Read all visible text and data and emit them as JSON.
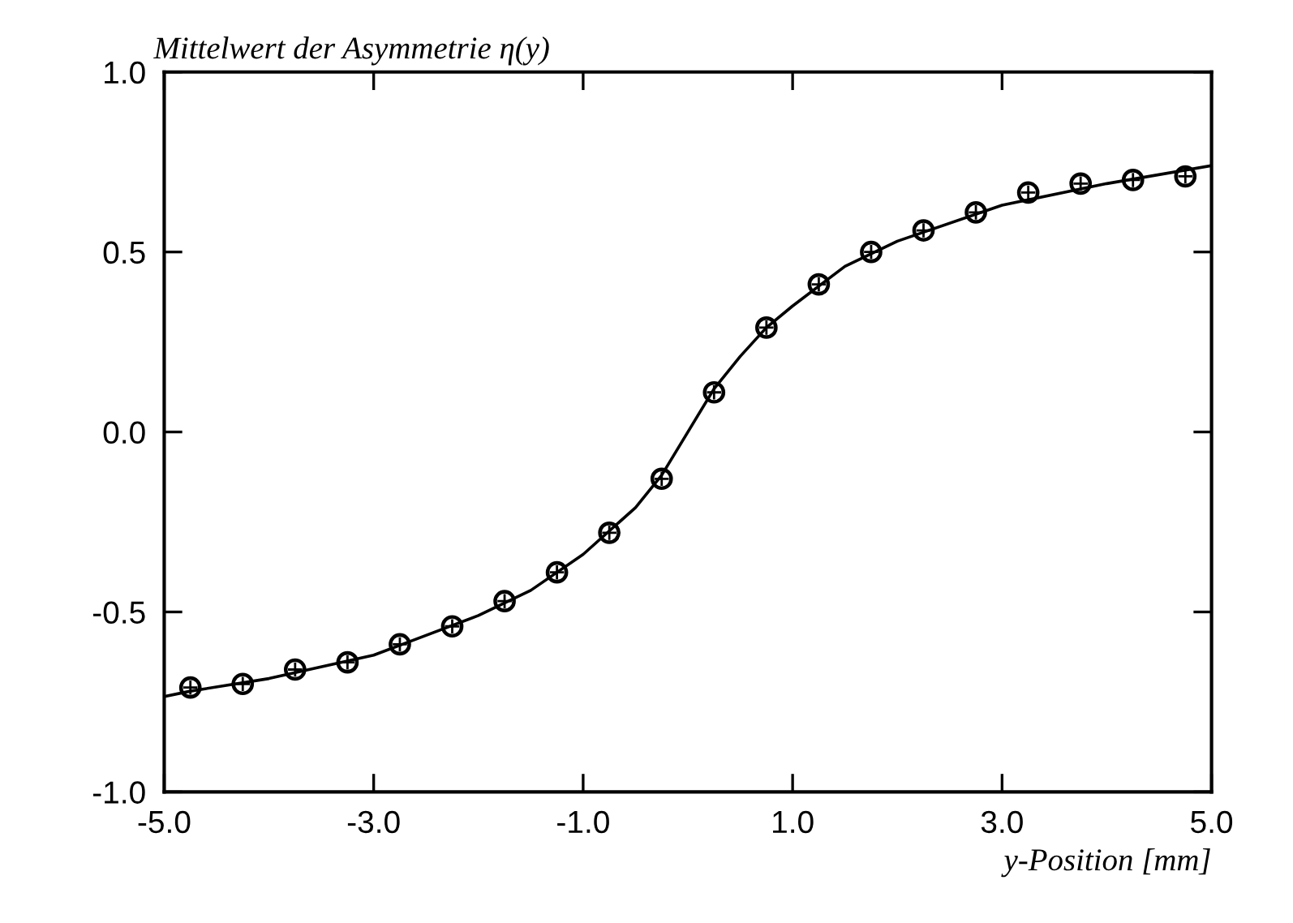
{
  "chart_data": {
    "type": "scatter",
    "title": "Mittelwert der Asymmetrie η(y)",
    "xlabel": "y-Position [mm]",
    "xlim": [
      -5,
      5
    ],
    "ylim": [
      -1,
      1
    ],
    "xticks": [
      {
        "value": -5,
        "label": "-5.0"
      },
      {
        "value": -3,
        "label": "-3.0"
      },
      {
        "value": -1,
        "label": "-1.0"
      },
      {
        "value": 1,
        "label": "1.0"
      },
      {
        "value": 3,
        "label": "3.0"
      },
      {
        "value": 5,
        "label": "5.0"
      }
    ],
    "yticks": [
      {
        "value": -1,
        "label": "-1.0"
      },
      {
        "value": -0.5,
        "label": "-0.5"
      },
      {
        "value": 0,
        "label": "0.0"
      },
      {
        "value": 0.5,
        "label": "0.5"
      },
      {
        "value": 1,
        "label": "1.0"
      }
    ],
    "grid": false,
    "legend": false,
    "marker": "circle",
    "series": [
      {
        "color": "#000000",
        "x": [
          -4.75,
          -4.25,
          -3.75,
          -3.25,
          -2.75,
          -2.25,
          -1.75,
          -1.25,
          -0.75,
          -0.25,
          0.25,
          0.75,
          1.25,
          1.75,
          2.25,
          2.75,
          3.25,
          3.75,
          4.25,
          4.75
        ],
        "values": [
          -0.71,
          -0.7,
          -0.66,
          -0.64,
          -0.59,
          -0.54,
          -0.47,
          -0.39,
          -0.28,
          -0.13,
          0.11,
          0.29,
          0.41,
          0.5,
          0.56,
          0.61,
          0.665,
          0.69,
          0.7,
          0.71
        ]
      },
      {
        "type": "line",
        "color": "#000000",
        "line_style": "solid",
        "marker": "none",
        "x": [
          -5,
          -4.75,
          -4,
          -3,
          -2,
          -1.5,
          -1,
          -0.5,
          -0.25,
          0,
          0.25,
          0.5,
          0.75,
          1,
          1.5,
          2,
          3,
          4,
          5
        ],
        "values": [
          -0.735,
          -0.72,
          -0.685,
          -0.62,
          -0.51,
          -0.44,
          -0.34,
          -0.21,
          -0.12,
          0.0,
          0.12,
          0.21,
          0.29,
          0.35,
          0.46,
          0.53,
          0.63,
          0.69,
          0.74
        ]
      }
    ]
  }
}
